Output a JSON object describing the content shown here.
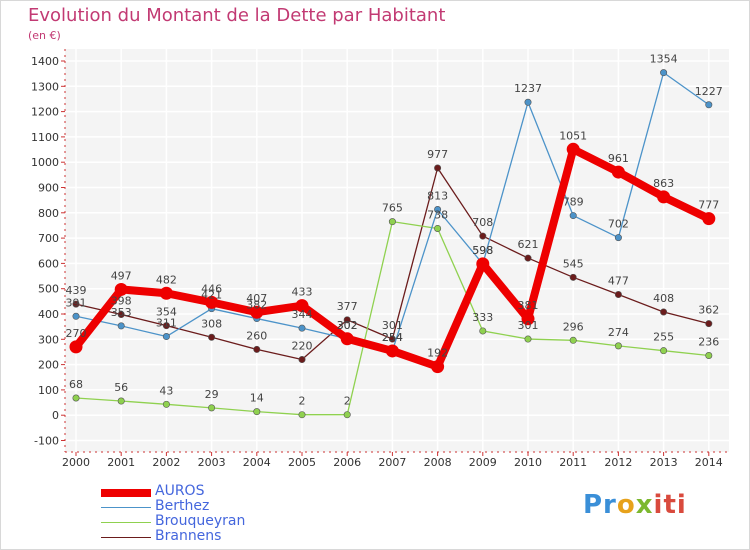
{
  "chart_data": {
    "type": "line",
    "title": "Evolution du Montant de la Dette par Habitant",
    "subtitle": "(en €)",
    "x": [
      "2000",
      "2001",
      "2002",
      "2003",
      "2004",
      "2005",
      "2006",
      "2007",
      "2008",
      "2009",
      "2010",
      "2011",
      "2012",
      "2013",
      "2014"
    ],
    "yticks": [
      -100,
      0,
      100,
      200,
      300,
      400,
      500,
      600,
      700,
      800,
      900,
      1000,
      1100,
      1200,
      1300,
      1400
    ],
    "ylim": [
      -100,
      1400
    ],
    "grid": true,
    "legend_position": "bottom-left",
    "series": [
      {
        "name": "AUROS",
        "color": "#ee0000",
        "values": [
          270,
          497,
          482,
          446,
          407,
          433,
          302,
          254,
          192,
          598,
          381,
          1051,
          961,
          863,
          777
        ]
      },
      {
        "name": "Berthez",
        "color": "#4c93c9",
        "values": [
          391,
          353,
          311,
          421,
          382,
          344,
          302,
          254,
          813,
          598,
          1237,
          789,
          702,
          1354,
          1227
        ]
      },
      {
        "name": "Brouqueyran",
        "color": "#8fd14f",
        "values": [
          68,
          56,
          43,
          29,
          14,
          2,
          2,
          765,
          738,
          333,
          301,
          296,
          274,
          255,
          236
        ]
      },
      {
        "name": "Brannens",
        "color": "#6b1c1c",
        "values": [
          439,
          398,
          354,
          308,
          260,
          220,
          377,
          301,
          977,
          708,
          621,
          545,
          477,
          408,
          362
        ]
      }
    ]
  },
  "branding": {
    "logo_parts": [
      "Pr",
      "o",
      "x",
      "iti"
    ]
  }
}
